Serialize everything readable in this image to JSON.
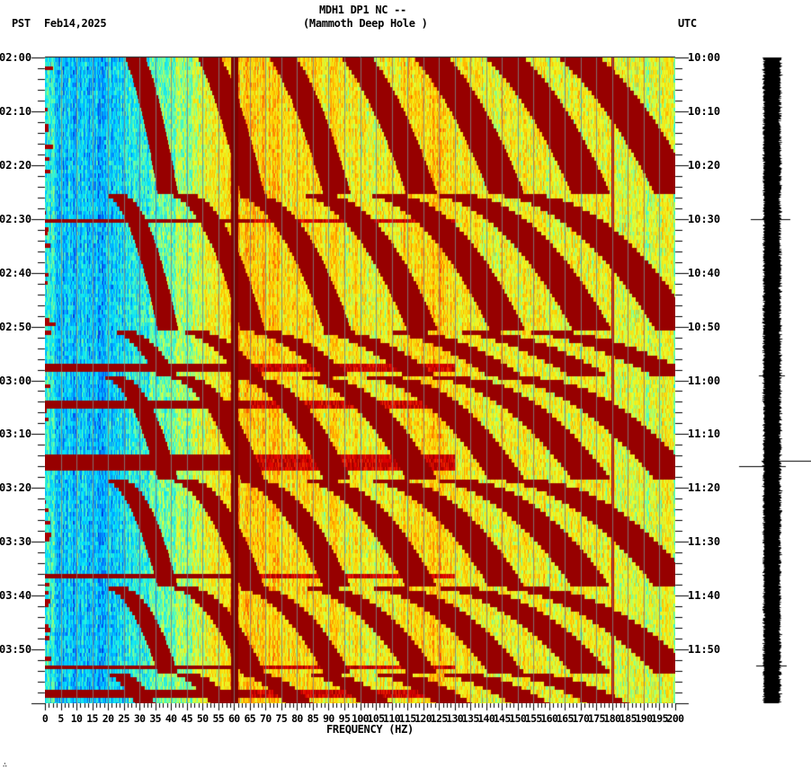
{
  "header": {
    "title_line1": "MDH1 DP1 NC --",
    "title_line2": "(Mammoth Deep Hole )",
    "left_timezone": "PST",
    "date": "Feb14,2025",
    "right_timezone": "UTC"
  },
  "footer": {
    "corner_mark": "∴"
  },
  "chart_data": {
    "type": "heatmap",
    "title": "MDH1 DP1 NC -- (Mammoth Deep Hole )",
    "xlabel": "FREQUENCY (HZ)",
    "ylabel_left": "PST",
    "ylabel_right": "UTC",
    "xlim": [
      0,
      200
    ],
    "x_ticks": [
      "0",
      "5",
      "10",
      "15",
      "20",
      "25",
      "30",
      "35",
      "40",
      "45",
      "50",
      "55",
      "60",
      "65",
      "70",
      "75",
      "80",
      "85",
      "90",
      "95",
      "100",
      "105",
      "110",
      "115",
      "120",
      "125",
      "130",
      "135",
      "140",
      "145",
      "150",
      "155",
      "160",
      "165",
      "170",
      "175",
      "180",
      "185",
      "190",
      "195",
      "200"
    ],
    "y_ticks_left": [
      "02:00",
      "02:10",
      "02:20",
      "02:30",
      "02:40",
      "02:50",
      "03:00",
      "03:10",
      "03:20",
      "03:30",
      "03:40",
      "03:50"
    ],
    "y_ticks_right": [
      "10:00",
      "10:10",
      "10:20",
      "10:30",
      "10:40",
      "10:50",
      "11:00",
      "11:10",
      "11:20",
      "11:30",
      "11:40",
      "11:50"
    ],
    "time_span_minutes": 120,
    "colormap": [
      "#0000c8",
      "#0080ff",
      "#00e0ff",
      "#60ffb0",
      "#e8ff30",
      "#ffd000",
      "#ff7000",
      "#e00000",
      "#800000"
    ],
    "persistent_lines_hz": [
      60,
      180
    ],
    "sweep_cycle_starts_min": [
      -6,
      25,
      50,
      59,
      78,
      98,
      114
    ],
    "broadband_events_min": [
      30,
      57,
      64,
      74,
      75.5,
      96,
      113,
      118
    ],
    "seismogram_spikes_min": [
      30,
      59,
      65,
      75,
      76,
      113
    ]
  }
}
